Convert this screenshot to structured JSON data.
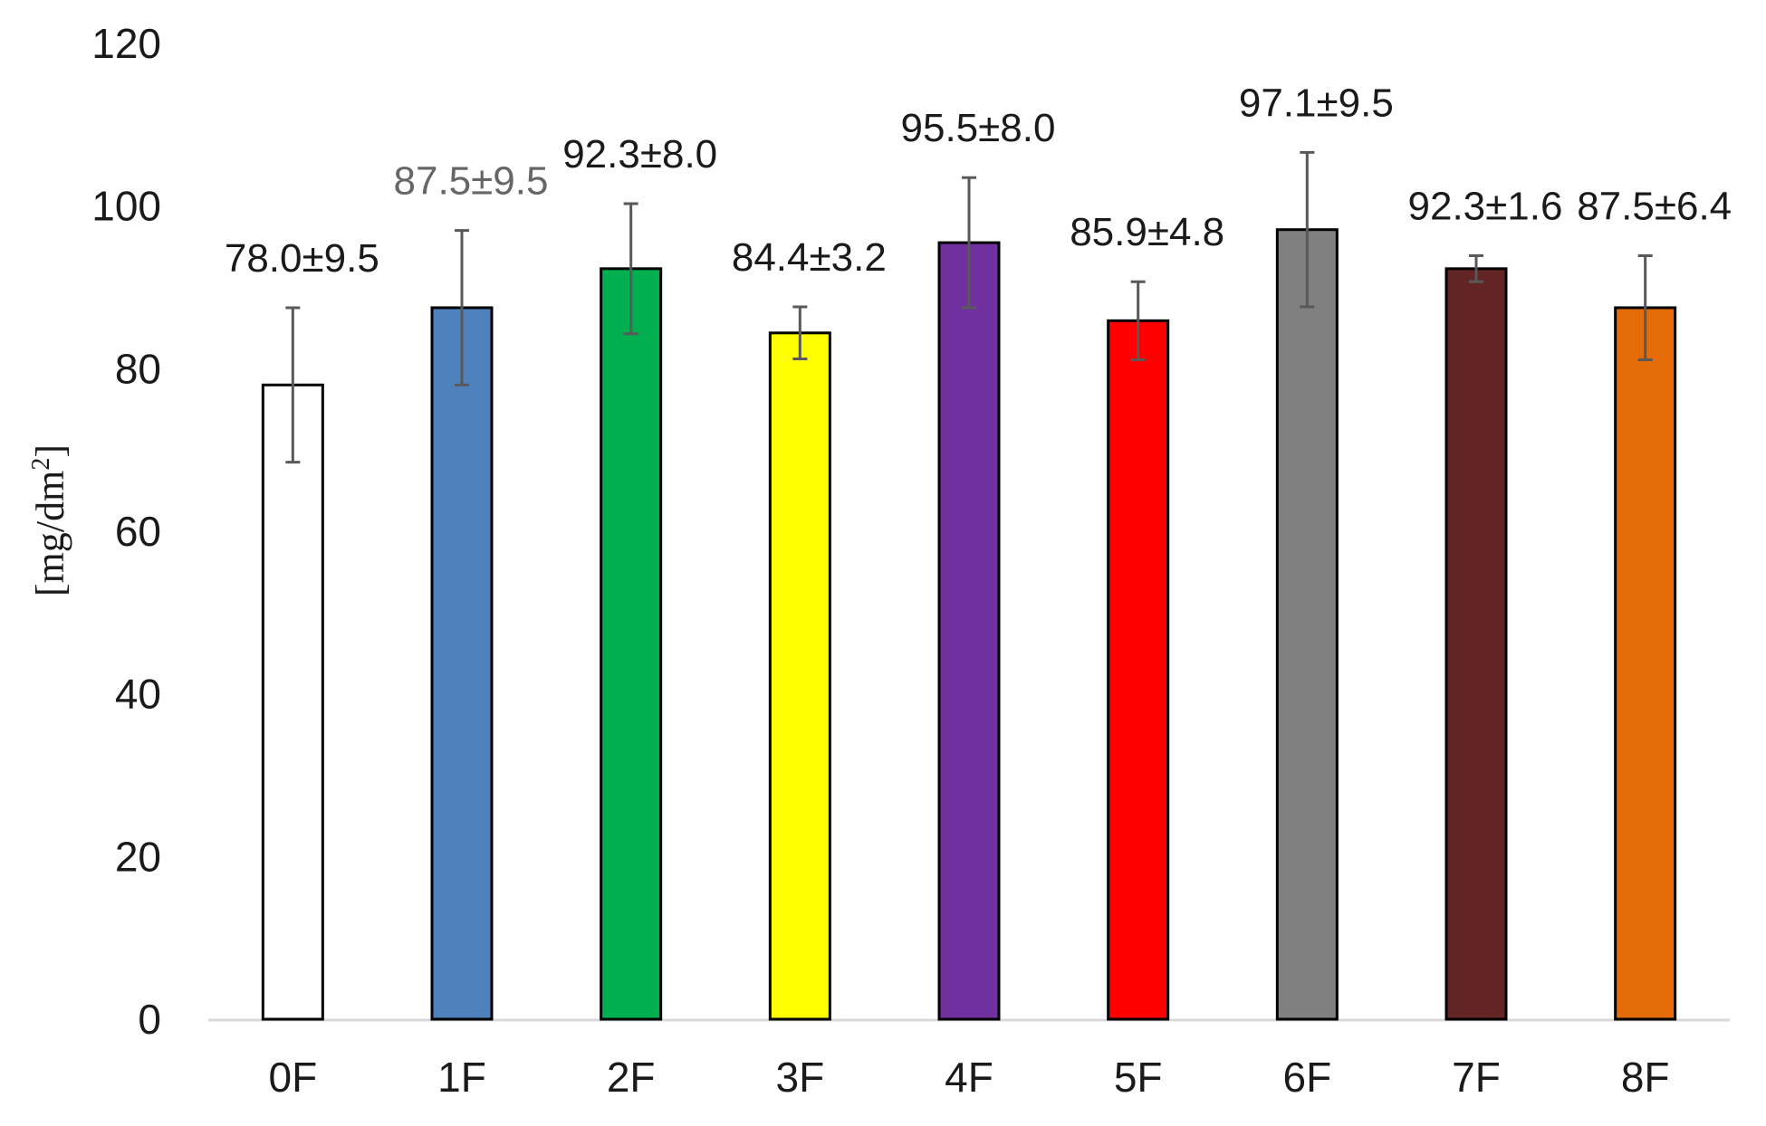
{
  "chart_data": {
    "type": "bar",
    "title": "",
    "xlabel": "",
    "ylabel": "[mg/dm",
    "ylabel_superscript": "2",
    "ylabel_close": "]",
    "ylim": [
      0,
      120
    ],
    "yticks": [
      "0",
      "20",
      "40",
      "60",
      "80",
      "100",
      "120"
    ],
    "grid": false,
    "legend": "none",
    "categories": [
      "0F",
      "1F",
      "2F",
      "3F",
      "4F",
      "5F",
      "6F",
      "7F",
      "8F"
    ],
    "values": [
      78.0,
      87.5,
      92.3,
      84.4,
      95.5,
      85.9,
      97.1,
      92.3,
      87.5
    ],
    "errors": [
      9.5,
      9.5,
      8.0,
      3.2,
      8.0,
      4.8,
      9.5,
      1.6,
      6.4
    ],
    "data_labels": [
      "78.0±9.5",
      "87.5±9.5",
      "92.3±8.0",
      "84.4±3.2",
      "95.5±8.0",
      "85.9±4.8",
      "97.1±9.5",
      "92.3±1.6",
      "87.5±6.4"
    ],
    "bar_colors": [
      "#ffffff",
      "#4f81bd",
      "#00b050",
      "#ffff00",
      "#7030a0",
      "#ff0000",
      "#808080",
      "#632523",
      "#e36c09"
    ],
    "label_colors": [
      "#1a1a1a",
      "#666666",
      "#1a1a1a",
      "#1a1a1a",
      "#1a1a1a",
      "#1a1a1a",
      "#1a1a1a",
      "#1a1a1a",
      "#1a1a1a"
    ],
    "error_bar_color": "#595959",
    "bar_edge_color": "#000000",
    "axis_color": "#d9d9d9"
  }
}
